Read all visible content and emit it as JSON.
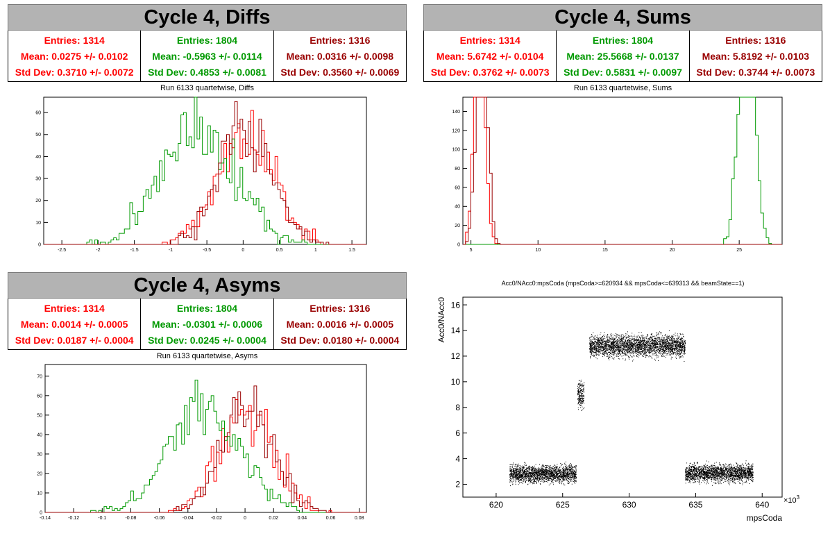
{
  "colors": {
    "series1": "#ff0000",
    "series2": "#009900",
    "series3": "#990000",
    "title_bg": "#b3b3b3"
  },
  "panels": {
    "diffs": {
      "title": "Cycle 4, Diffs",
      "subtitle": "Run 6133 quartetwise, Diffs",
      "stats": [
        {
          "entries": "Entries: 1314",
          "mean": "Mean: 0.0275 +/- 0.0102",
          "std": "Std Dev: 0.3710 +/- 0.0072"
        },
        {
          "entries": "Entries: 1804",
          "mean": "Mean: -0.5963 +/- 0.0114",
          "std": "Std Dev: 0.4853 +/- 0.0081"
        },
        {
          "entries": "Entries: 1316",
          "mean": "Mean: 0.0316 +/- 0.0098",
          "std": "Std Dev: 0.3560 +/- 0.0069"
        }
      ]
    },
    "sums": {
      "title": "Cycle 4, Sums",
      "subtitle": "Run 6133 quartetwise, Sums",
      "stats": [
        {
          "entries": "Entries: 1314",
          "mean": "Mean: 5.6742 +/- 0.0104",
          "std": "Std Dev: 0.3762 +/- 0.0073"
        },
        {
          "entries": "Entries: 1804",
          "mean": "Mean: 25.5668 +/- 0.0137",
          "std": "Std Dev: 0.5831 +/- 0.0097"
        },
        {
          "entries": "Entries: 1316",
          "mean": "Mean: 5.8192 +/- 0.0103",
          "std": "Std Dev: 0.3744 +/- 0.0073"
        }
      ]
    },
    "asyms": {
      "title": "Cycle 4, Asyms",
      "subtitle": "Run 6133 quartetwise, Asyms",
      "stats": [
        {
          "entries": "Entries: 1314",
          "mean": "Mean: 0.0014 +/- 0.0005",
          "std": "Std Dev: 0.0187 +/- 0.0004"
        },
        {
          "entries": "Entries: 1804",
          "mean": "Mean: -0.0301 +/- 0.0006",
          "std": "Std Dev: 0.0245 +/- 0.0004"
        },
        {
          "entries": "Entries: 1316",
          "mean": "Mean: 0.0016 +/- 0.0005",
          "std": "Std Dev: 0.0180 +/- 0.0004"
        }
      ]
    },
    "scatter": {
      "subtitle": "Acc0/NAcc0:mpsCoda (mpsCoda>=620934 && mpsCoda<=639313 && beamState==1)"
    }
  },
  "chart_data": [
    {
      "id": "diffs",
      "type": "histogram",
      "xlim": [
        -2.75,
        1.7
      ],
      "ylim": [
        0,
        67
      ],
      "xticks": [
        -2.5,
        -2,
        -1.5,
        -1,
        -0.5,
        0,
        0.5,
        1,
        1.5
      ],
      "yticks": [
        0,
        10,
        20,
        30,
        40,
        50,
        60
      ],
      "series": [
        {
          "mean": 0.0275,
          "std": 0.371,
          "entries": 1314,
          "color": "#ff0000"
        },
        {
          "mean": -0.5963,
          "std": 0.4853,
          "entries": 1804,
          "color": "#009900"
        },
        {
          "mean": 0.0316,
          "std": 0.356,
          "entries": 1316,
          "color": "#990000"
        }
      ]
    },
    {
      "id": "sums",
      "type": "histogram",
      "xlim": [
        4.4,
        28.2
      ],
      "ylim": [
        0,
        155
      ],
      "xticks": [
        5,
        10,
        15,
        20,
        25
      ],
      "yticks": [
        0,
        20,
        40,
        60,
        80,
        100,
        120,
        140
      ],
      "series": [
        {
          "mean": 5.6742,
          "std": 0.3762,
          "entries": 1314,
          "color": "#ff0000"
        },
        {
          "mean": 25.5668,
          "std": 0.5831,
          "entries": 1804,
          "color": "#009900"
        },
        {
          "mean": 5.8192,
          "std": 0.3744,
          "entries": 1316,
          "color": "#990000"
        }
      ]
    },
    {
      "id": "asyms",
      "type": "histogram",
      "xlim": [
        -0.14,
        0.085
      ],
      "ylim": [
        0,
        76
      ],
      "xticks": [
        -0.14,
        -0.12,
        -0.1,
        -0.08,
        -0.06,
        -0.04,
        -0.02,
        0,
        0.02,
        0.04,
        0.06,
        0.08
      ],
      "yticks": [
        0,
        10,
        20,
        30,
        40,
        50,
        60,
        70
      ],
      "series": [
        {
          "mean": 0.0014,
          "std": 0.0187,
          "entries": 1314,
          "color": "#ff0000"
        },
        {
          "mean": -0.0301,
          "std": 0.0245,
          "entries": 1804,
          "color": "#009900"
        },
        {
          "mean": 0.0016,
          "std": 0.018,
          "entries": 1316,
          "color": "#990000"
        }
      ]
    },
    {
      "id": "scatter",
      "type": "scatter",
      "xlabel": "mpsCoda",
      "ylabel": "Acc0/NAcc0",
      "x_multiplier_label": "×10",
      "x_multiplier_exp": "3",
      "xlim": [
        617.5,
        641.5
      ],
      "ylim": [
        1,
        16.6
      ],
      "xticks": [
        620,
        625,
        630,
        635,
        640
      ],
      "yticks": [
        2,
        4,
        6,
        8,
        10,
        12,
        14,
        16
      ],
      "clusters": [
        {
          "x": [
            621.0,
            626.0
          ],
          "y": 2.8,
          "spread": 0.55
        },
        {
          "x": [
            626.1,
            626.6
          ],
          "y": 9.0,
          "spread": 0.9
        },
        {
          "x": [
            627.0,
            634.2
          ],
          "y": 12.8,
          "spread": 0.7
        },
        {
          "x": [
            634.2,
            639.3
          ],
          "y": 2.85,
          "spread": 0.55
        }
      ]
    }
  ]
}
